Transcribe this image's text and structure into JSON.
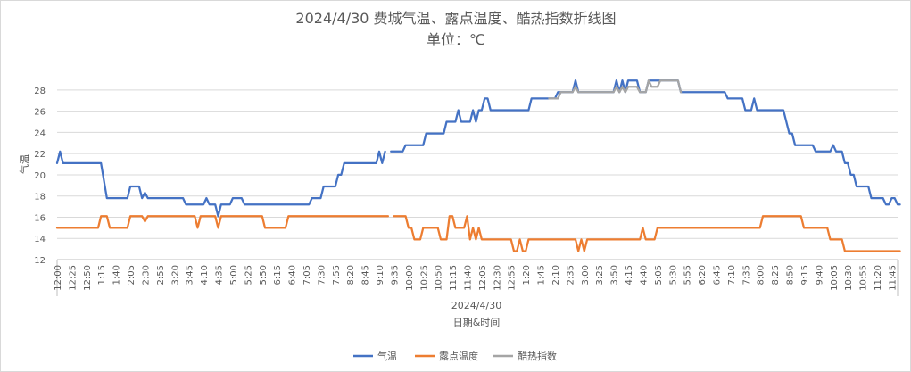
{
  "chart_data": {
    "type": "line",
    "title": "2024/4/30 费城气温、露点温度、酷热指数折线图",
    "subtitle": "单位：℃",
    "xlabel": "日期&时间",
    "x_group_label": "2024/4/30",
    "ylabel": "气温",
    "ylim": [
      12,
      29
    ],
    "yticks": [
      12,
      14,
      16,
      18,
      20,
      22,
      24,
      26,
      28
    ],
    "grid": true,
    "legend": "bottom",
    "x_start": "12:00",
    "x_end": "11:59",
    "x_step_minutes": 5,
    "x_tick_labels": [
      "12:00",
      "12:25",
      "12:50",
      "1:15",
      "1:40",
      "2:05",
      "2:30",
      "2:55",
      "3:20",
      "3:45",
      "4:10",
      "4:35",
      "5:00",
      "5:25",
      "5:50",
      "6:15",
      "6:40",
      "7:05",
      "7:30",
      "7:55",
      "8:20",
      "8:45",
      "9:10",
      "9:35",
      "10:00",
      "10:25",
      "10:50",
      "11:15",
      "11:40",
      "12:05",
      "12:30",
      "12:55",
      "1:20",
      "1:45",
      "2:10",
      "2:35",
      "3:00",
      "3:25",
      "3:50",
      "4:15",
      "4:40",
      "5:05",
      "5:30",
      "5:55",
      "6:20",
      "6:45",
      "7:10",
      "7:35",
      "8:00",
      "8:25",
      "8:50",
      "9:15",
      "9:40",
      "10:05",
      "10:30",
      "10:55",
      "11:20",
      "11:45"
    ],
    "series": [
      {
        "name": "气温",
        "color": "#4472c4",
        "points": [
          [
            "0:00",
            21.1
          ],
          [
            "0:05",
            22.2
          ],
          [
            "0:10",
            21.1
          ],
          [
            "1:15",
            21.1
          ],
          [
            "1:25",
            17.8
          ],
          [
            "2:00",
            17.8
          ],
          [
            "2:05",
            18.9
          ],
          [
            "2:20",
            18.9
          ],
          [
            "2:25",
            17.8
          ],
          [
            "2:30",
            18.3
          ],
          [
            "2:35",
            17.8
          ],
          [
            "3:35",
            17.8
          ],
          [
            "3:40",
            17.2
          ],
          [
            "4:10",
            17.2
          ],
          [
            "4:15",
            17.8
          ],
          [
            "4:20",
            17.2
          ],
          [
            "4:30",
            17.2
          ],
          [
            "4:35",
            16.1
          ],
          [
            "4:40",
            17.2
          ],
          [
            "4:55",
            17.2
          ],
          [
            "5:00",
            17.8
          ],
          [
            "5:15",
            17.8
          ],
          [
            "5:20",
            17.2
          ],
          [
            "7:10",
            17.2
          ],
          [
            "7:15",
            17.8
          ],
          [
            "7:30",
            17.8
          ],
          [
            "7:35",
            18.9
          ],
          [
            "7:55",
            18.9
          ],
          [
            "8:00",
            20.0
          ],
          [
            "8:05",
            20.0
          ],
          [
            "8:10",
            21.1
          ],
          [
            "9:05",
            21.1
          ],
          [
            "9:10",
            22.2
          ],
          [
            "9:15",
            21.1
          ],
          [
            "9:20",
            22.2
          ],
          null,
          [
            "9:30",
            22.2
          ],
          [
            "9:50",
            22.2
          ],
          [
            "9:55",
            22.8
          ],
          [
            "10:25",
            22.8
          ],
          [
            "10:30",
            23.9
          ],
          [
            "11:00",
            23.9
          ],
          [
            "11:05",
            25.0
          ],
          [
            "11:20",
            25.0
          ],
          [
            "11:25",
            26.1
          ],
          [
            "11:30",
            25.0
          ],
          [
            "11:45",
            25.0
          ],
          [
            "11:50",
            26.1
          ],
          [
            "11:55",
            25.0
          ],
          [
            "12:00",
            26.1
          ],
          [
            "12:05",
            26.1
          ],
          [
            "12:10",
            27.2
          ],
          [
            "12:15",
            27.2
          ],
          [
            "12:20",
            26.1
          ],
          [
            "13:25",
            26.1
          ],
          [
            "13:30",
            27.2
          ],
          [
            "14:10",
            27.2
          ],
          [
            "14:15",
            27.8
          ],
          [
            "14:40",
            27.8
          ],
          [
            "14:45",
            28.9
          ],
          [
            "14:50",
            27.8
          ],
          [
            "15:50",
            27.8
          ],
          [
            "15:55",
            28.9
          ],
          [
            "16:00",
            27.8
          ],
          [
            "16:05",
            28.9
          ],
          [
            "16:10",
            27.8
          ],
          [
            "16:15",
            28.9
          ],
          [
            "16:30",
            28.9
          ],
          [
            "16:35",
            27.8
          ],
          [
            "16:45",
            27.8
          ],
          [
            "16:50",
            28.9
          ],
          [
            "17:00",
            28.9
          ],
          [
            "17:05",
            28.9
          ],
          [
            "17:40",
            28.9
          ],
          [
            "17:45",
            27.8
          ],
          [
            "19:00",
            27.8
          ],
          [
            "19:05",
            27.2
          ],
          [
            "19:30",
            27.2
          ],
          [
            "19:35",
            26.1
          ],
          [
            "19:45",
            26.1
          ],
          [
            "19:50",
            27.2
          ],
          [
            "19:55",
            26.1
          ],
          [
            "20:40",
            26.1
          ],
          [
            "20:45",
            25.0
          ],
          [
            "20:50",
            23.9
          ],
          [
            "20:55",
            23.9
          ],
          [
            "21:00",
            22.8
          ],
          [
            "21:30",
            22.8
          ],
          [
            "21:35",
            22.2
          ],
          [
            "22:00",
            22.2
          ],
          [
            "22:05",
            22.8
          ],
          [
            "22:10",
            22.2
          ],
          [
            "22:20",
            22.2
          ],
          [
            "22:25",
            21.1
          ],
          [
            "22:30",
            21.1
          ],
          [
            "22:35",
            20.0
          ],
          [
            "22:40",
            20.0
          ],
          [
            "22:45",
            18.9
          ],
          [
            "23:05",
            18.9
          ],
          [
            "23:10",
            17.8
          ],
          [
            "23:30",
            17.8
          ],
          [
            "23:35",
            17.2
          ],
          [
            "23:40",
            17.2
          ],
          [
            "23:45",
            17.8
          ],
          [
            "23:50",
            17.8
          ],
          [
            "23:55",
            17.2
          ],
          [
            "23:59",
            17.2
          ]
        ]
      },
      {
        "name": "露点温度",
        "color": "#ed7d31",
        "points": [
          [
            "0:00",
            15.0
          ],
          [
            "1:10",
            15.0
          ],
          [
            "1:15",
            16.1
          ],
          [
            "1:25",
            16.1
          ],
          [
            "1:30",
            15.0
          ],
          [
            "2:00",
            15.0
          ],
          [
            "2:05",
            16.1
          ],
          [
            "2:25",
            16.1
          ],
          [
            "2:30",
            15.6
          ],
          [
            "2:35",
            16.1
          ],
          [
            "3:55",
            16.1
          ],
          [
            "4:00",
            15.0
          ],
          [
            "4:05",
            16.1
          ],
          [
            "4:30",
            16.1
          ],
          [
            "4:35",
            15.0
          ],
          [
            "4:40",
            16.1
          ],
          [
            "5:50",
            16.1
          ],
          [
            "5:55",
            15.0
          ],
          [
            "6:30",
            15.0
          ],
          [
            "6:35",
            16.1
          ],
          [
            "9:25",
            16.1
          ],
          null,
          [
            "9:35",
            16.1
          ],
          [
            "9:55",
            16.1
          ],
          [
            "10:00",
            15.0
          ],
          [
            "10:05",
            15.0
          ],
          [
            "10:10",
            13.9
          ],
          [
            "10:20",
            13.9
          ],
          [
            "10:25",
            15.0
          ],
          [
            "10:50",
            15.0
          ],
          [
            "10:55",
            13.9
          ],
          [
            "11:05",
            13.9
          ],
          [
            "11:10",
            16.1
          ],
          [
            "11:15",
            16.1
          ],
          [
            "11:20",
            15.0
          ],
          [
            "11:35",
            15.0
          ],
          [
            "11:40",
            16.1
          ],
          [
            "11:45",
            13.9
          ],
          [
            "11:50",
            15.0
          ],
          [
            "11:55",
            13.9
          ],
          [
            "12:00",
            15.0
          ],
          [
            "12:05",
            13.9
          ],
          [
            "12:55",
            13.9
          ],
          [
            "13:00",
            12.8
          ],
          [
            "13:05",
            12.8
          ],
          [
            "13:10",
            13.9
          ],
          [
            "13:15",
            12.8
          ],
          [
            "13:20",
            12.8
          ],
          [
            "13:25",
            13.9
          ],
          [
            "14:45",
            13.9
          ],
          [
            "14:50",
            12.8
          ],
          [
            "14:55",
            13.9
          ],
          [
            "15:00",
            12.8
          ],
          [
            "15:05",
            13.9
          ],
          [
            "16:35",
            13.9
          ],
          [
            "16:40",
            15.0
          ],
          [
            "16:45",
            13.9
          ],
          [
            "17:00",
            13.9
          ],
          [
            "17:05",
            15.0
          ],
          [
            "20:00",
            15.0
          ],
          [
            "20:05",
            16.1
          ],
          [
            "21:10",
            16.1
          ],
          [
            "21:15",
            15.0
          ],
          [
            "21:55",
            15.0
          ],
          [
            "22:00",
            13.9
          ],
          [
            "22:20",
            13.9
          ],
          [
            "22:25",
            12.8
          ],
          [
            "23:59",
            12.8
          ]
        ]
      },
      {
        "name": "酷热指数",
        "color": "#a5a5a5",
        "points": [
          [
            "14:00",
            27.2
          ],
          [
            "14:15",
            27.2
          ],
          [
            "14:20",
            27.8
          ],
          [
            "14:40",
            27.8
          ],
          [
            "14:45",
            28.3
          ],
          [
            "14:50",
            27.8
          ],
          [
            "15:50",
            27.8
          ],
          [
            "15:55",
            28.3
          ],
          [
            "16:00",
            27.8
          ],
          [
            "16:05",
            28.3
          ],
          [
            "16:10",
            27.8
          ],
          [
            "16:15",
            28.3
          ],
          [
            "16:30",
            28.3
          ],
          [
            "16:35",
            27.8
          ],
          [
            "16:45",
            27.8
          ],
          [
            "16:50",
            28.9
          ],
          [
            "16:55",
            28.3
          ],
          [
            "17:05",
            28.3
          ],
          [
            "17:10",
            28.9
          ],
          [
            "17:40",
            28.9
          ],
          [
            "17:45",
            27.8
          ]
        ]
      }
    ]
  }
}
